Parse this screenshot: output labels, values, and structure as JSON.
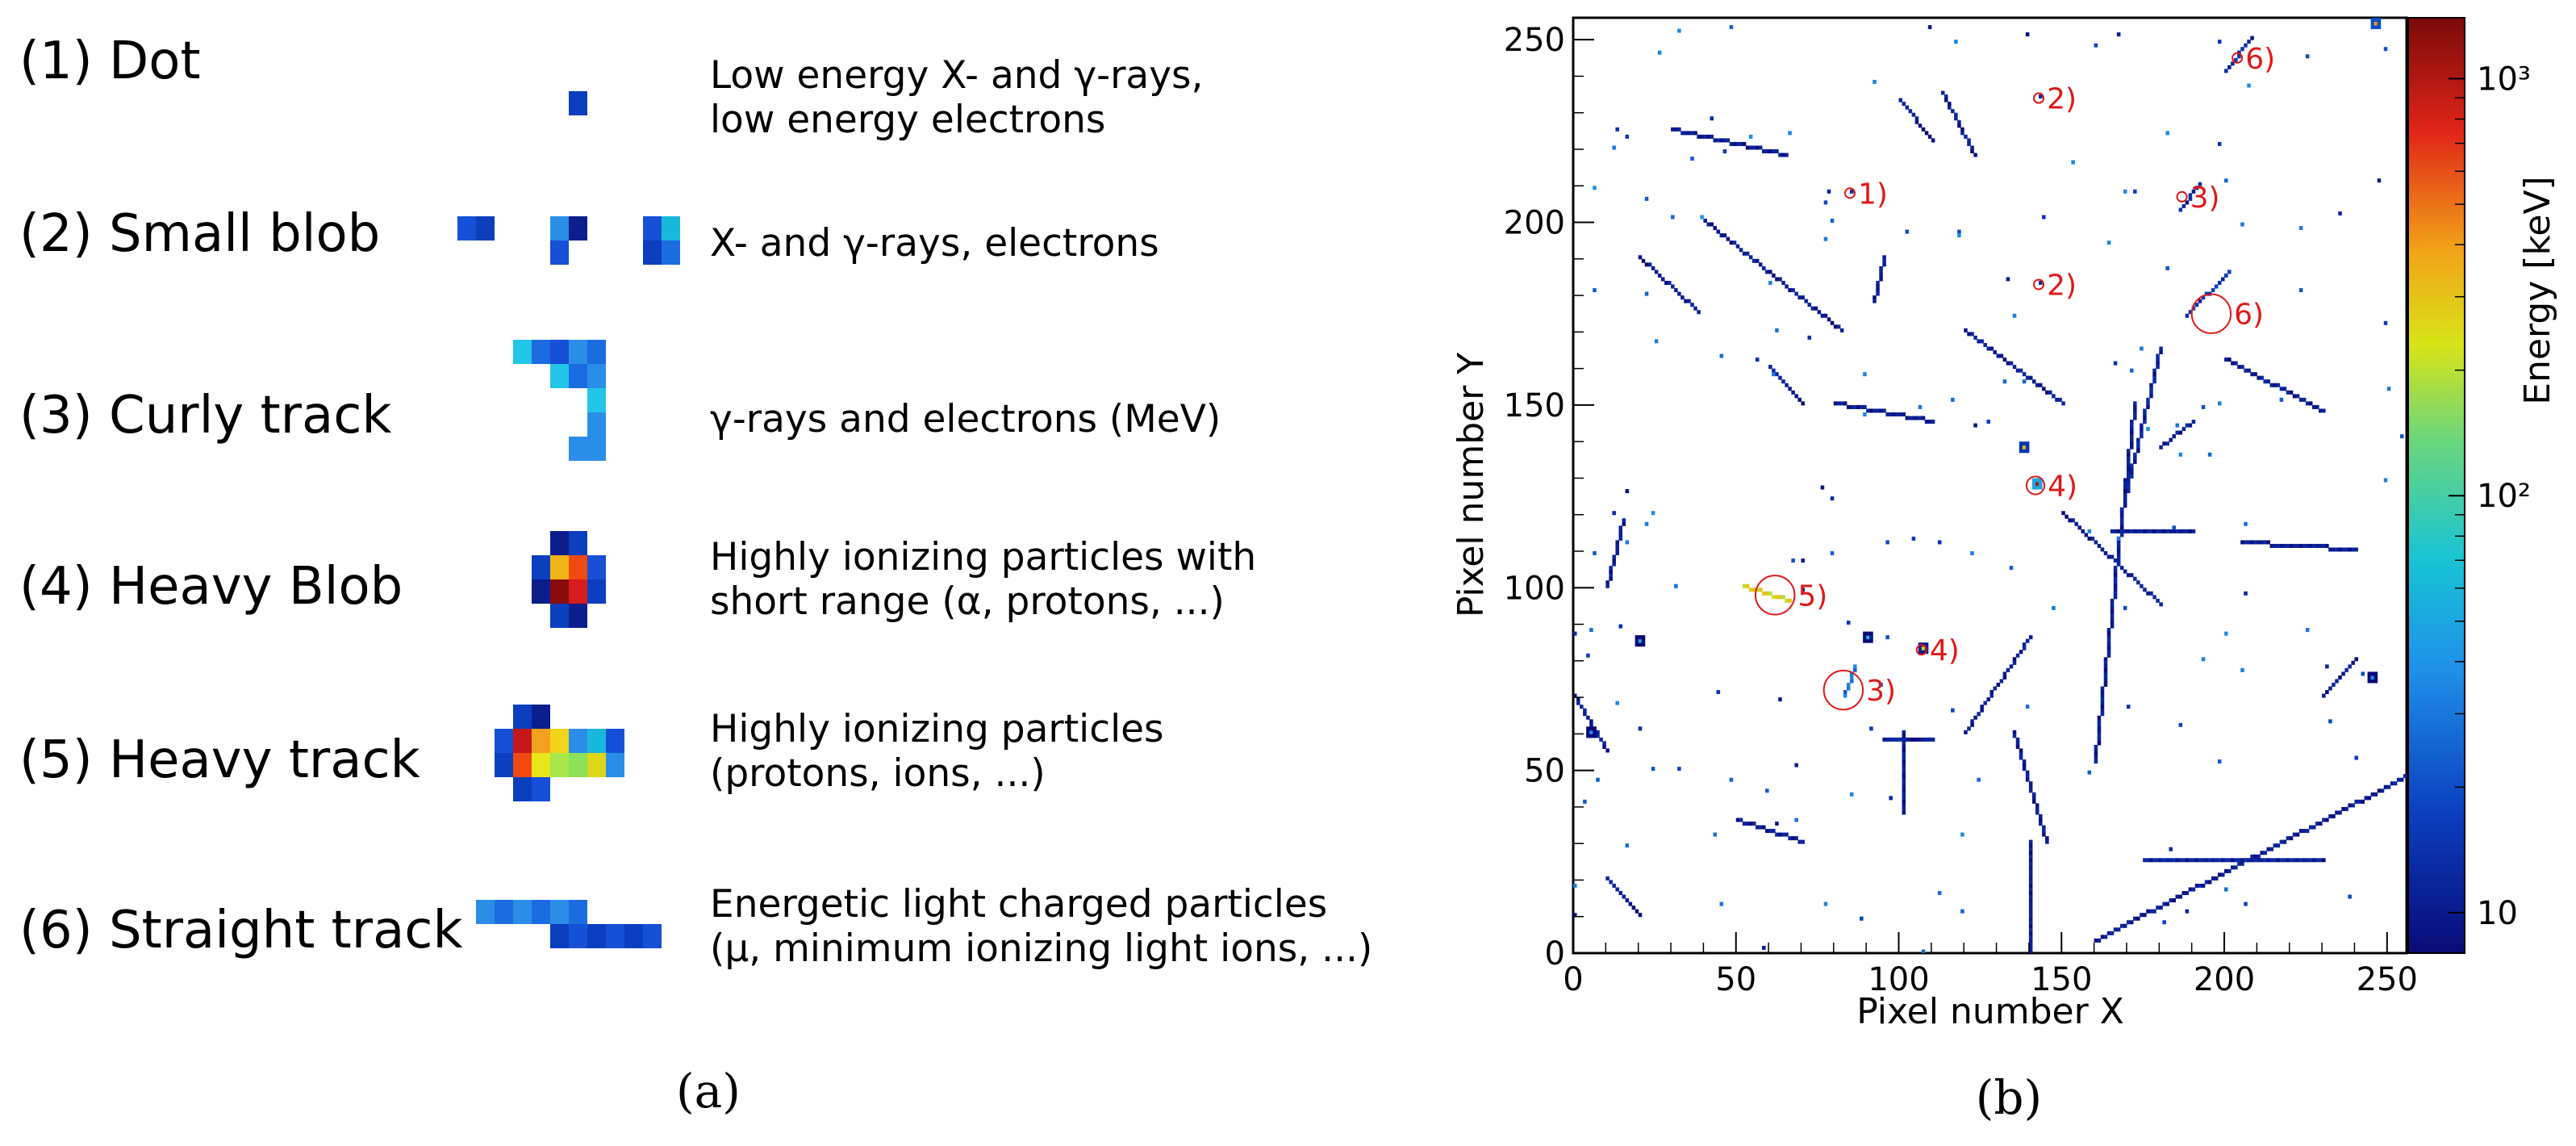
{
  "panel_a": {
    "rows": [
      {
        "label": "(1) Dot",
        "desc": "Low energy X- and γ-rays,\nlow energy electrons",
        "icon": "dot-cluster"
      },
      {
        "label": "(2) Small blob",
        "desc": "X- and γ-rays, electrons",
        "icon": "small-blob-clusters"
      },
      {
        "label": "(3) Curly track",
        "desc": "γ-rays and electrons (MeV)",
        "icon": "curly-track-cluster"
      },
      {
        "label": "(4) Heavy Blob",
        "desc": "Highly ionizing particles with\nshort range (α, protons, ...)",
        "icon": "heavy-blob-cluster"
      },
      {
        "label": "(5) Heavy track",
        "desc": "Highly ionizing particles\n(protons, ions, ...)",
        "icon": "heavy-track-cluster"
      },
      {
        "label": "(6) Straight track",
        "desc": "Energetic light charged particles\n(μ, minimum ionizing light ions, ...)",
        "icon": "straight-track-cluster"
      }
    ],
    "caption": "(a)"
  },
  "panel_b_caption": "(b)",
  "chart_data": {
    "type": "heatmap",
    "title": "",
    "xlabel": "Pixel number X",
    "ylabel": "Pixel number Y",
    "xlim": [
      0,
      256
    ],
    "ylim": [
      0,
      256
    ],
    "x_ticks": [
      0,
      50,
      100,
      150,
      200,
      250
    ],
    "y_ticks": [
      0,
      50,
      100,
      150,
      200,
      250
    ],
    "colorbar": {
      "label": "Energy [keV]",
      "scale": "log",
      "range": [
        8,
        1400
      ],
      "ticks": [
        {
          "value": 10,
          "label": "10"
        },
        {
          "value": 100,
          "label": "10²"
        },
        {
          "value": 1000,
          "label": "10³"
        }
      ]
    },
    "annotations": [
      {
        "label": "1)",
        "x": 85,
        "y": 208
      },
      {
        "label": "2)",
        "x": 143,
        "y": 234
      },
      {
        "label": "2)",
        "x": 143,
        "y": 183
      },
      {
        "label": "3)",
        "x": 187,
        "y": 207
      },
      {
        "label": "3)",
        "x": 83,
        "y": 72
      },
      {
        "label": "4)",
        "x": 142,
        "y": 128
      },
      {
        "label": "4)",
        "x": 107,
        "y": 83
      },
      {
        "label": "5)",
        "x": 62,
        "y": 98
      },
      {
        "label": "6)",
        "x": 204,
        "y": 245
      },
      {
        "label": "6)",
        "x": 196,
        "y": 175
      }
    ],
    "tracks": [
      {
        "x1": 200,
        "y1": 241,
        "x2": 208,
        "y2": 250,
        "e": 12
      },
      {
        "x1": 188,
        "y1": 174,
        "x2": 201,
        "y2": 186,
        "e": 14
      },
      {
        "x1": 180,
        "y1": 165,
        "x2": 168,
        "y2": 120,
        "e": 11
      },
      {
        "x1": 172,
        "y1": 150,
        "x2": 160,
        "y2": 52,
        "e": 10
      },
      {
        "x1": 165,
        "y1": 115,
        "x2": 190,
        "y2": 115,
        "e": 10
      },
      {
        "x1": 150,
        "y1": 120,
        "x2": 180,
        "y2": 95,
        "e": 10
      },
      {
        "x1": 101,
        "y1": 60,
        "x2": 101,
        "y2": 38,
        "e": 10
      },
      {
        "x1": 110,
        "y1": 58,
        "x2": 95,
        "y2": 58,
        "e": 10
      },
      {
        "x1": 140,
        "y1": 86,
        "x2": 120,
        "y2": 60,
        "e": 10
      },
      {
        "x1": 160,
        "y1": 3,
        "x2": 256,
        "y2": 48,
        "e": 10
      },
      {
        "x1": 175,
        "y1": 25,
        "x2": 230,
        "y2": 25,
        "e": 11
      },
      {
        "x1": 140,
        "y1": 0,
        "x2": 140,
        "y2": 30,
        "e": 10
      },
      {
        "x1": 40,
        "y1": 200,
        "x2": 82,
        "y2": 170,
        "e": 10
      },
      {
        "x1": 20,
        "y1": 190,
        "x2": 38,
        "y2": 175,
        "e": 10
      },
      {
        "x1": 100,
        "y1": 233,
        "x2": 110,
        "y2": 222,
        "e": 10
      },
      {
        "x1": 30,
        "y1": 225,
        "x2": 65,
        "y2": 218,
        "e": 10
      },
      {
        "x1": 0,
        "y1": 70,
        "x2": 10,
        "y2": 55,
        "e": 10
      },
      {
        "x1": 80,
        "y1": 150,
        "x2": 110,
        "y2": 145,
        "e": 10
      },
      {
        "x1": 200,
        "y1": 162,
        "x2": 230,
        "y2": 148,
        "e": 10
      },
      {
        "x1": 205,
        "y1": 112,
        "x2": 240,
        "y2": 110,
        "e": 10
      },
      {
        "x1": 120,
        "y1": 170,
        "x2": 150,
        "y2": 150,
        "e": 10
      },
      {
        "x1": 180,
        "y1": 138,
        "x2": 190,
        "y2": 145,
        "e": 11
      },
      {
        "x1": 50,
        "y1": 36,
        "x2": 70,
        "y2": 30,
        "e": 10
      },
      {
        "x1": 10,
        "y1": 100,
        "x2": 15,
        "y2": 118,
        "e": 10
      },
      {
        "x1": 135,
        "y1": 60,
        "x2": 145,
        "y2": 30,
        "e": 10
      },
      {
        "x1": 113,
        "y1": 235,
        "x2": 123,
        "y2": 218,
        "e": 10
      },
      {
        "x1": 60,
        "y1": 160,
        "x2": 70,
        "y2": 150,
        "e": 10
      },
      {
        "x1": 10,
        "y1": 20,
        "x2": 20,
        "y2": 10,
        "e": 10
      },
      {
        "x1": 230,
        "y1": 70,
        "x2": 240,
        "y2": 80,
        "e": 10
      },
      {
        "x1": 95,
        "y1": 190,
        "x2": 92,
        "y2": 178,
        "e": 10
      },
      {
        "x1": 52,
        "y1": 100,
        "x2": 66,
        "y2": 96,
        "e": 250
      },
      {
        "x1": 83,
        "y1": 70,
        "x2": 86,
        "y2": 78,
        "e": 30
      },
      {
        "x1": 186,
        "y1": 203,
        "x2": 192,
        "y2": 210,
        "e": 12
      }
    ],
    "hotspots": [
      {
        "x": 142,
        "y": 128,
        "e": 1000
      },
      {
        "x": 107,
        "y": 83,
        "e": 200
      },
      {
        "x": 246,
        "y": 254,
        "e": 400
      },
      {
        "x": 138,
        "y": 138,
        "e": 300
      },
      {
        "x": 90,
        "y": 86,
        "e": 60
      },
      {
        "x": 5,
        "y": 60,
        "e": 40
      },
      {
        "x": 20,
        "y": 85,
        "e": 50
      },
      {
        "x": 245,
        "y": 75,
        "e": 40
      },
      {
        "x": 143,
        "y": 234,
        "e": 12
      },
      {
        "x": 143,
        "y": 183,
        "e": 12
      },
      {
        "x": 85,
        "y": 208,
        "e": 12
      },
      {
        "x": 78,
        "y": 208,
        "e": 12
      }
    ]
  }
}
